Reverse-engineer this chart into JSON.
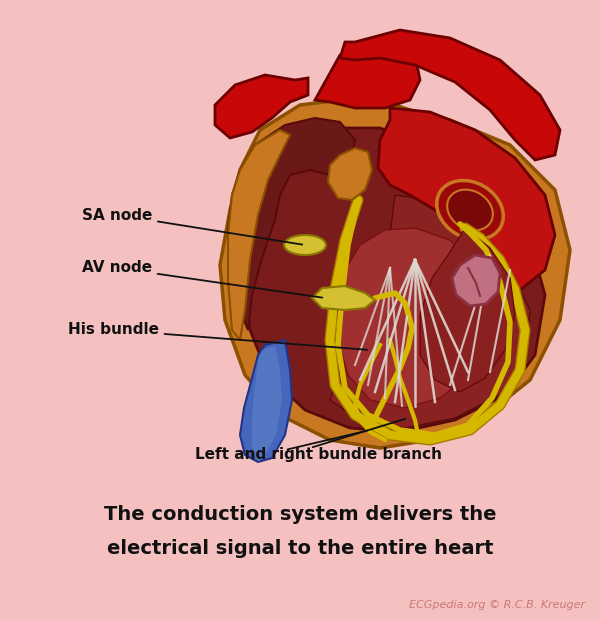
{
  "background_color": "#f5c0c0",
  "title_text1": "The conduction system delivers the",
  "title_text2": "electrical signal to the entire heart",
  "watermark": "ECGpedia.org © R.C.B. Kreuger",
  "label_fontsize": 11,
  "title_fontsize": 14,
  "watermark_fontsize": 8,
  "heart_outer_color": "#c87820",
  "heart_dark_red": "#7a1c1c",
  "heart_mid_red": "#9b2828",
  "heart_bright_red": "#cc1010",
  "heart_aorta_red": "#c80808",
  "sa_node_color": "#d4c030",
  "av_node_color": "#d4c030",
  "bundle_color": "#d4b800",
  "bundle_line_color": "#c8a000",
  "blue_vessel_color": "#4466bb",
  "blue_vessel_light": "#6688cc",
  "white_fiber_color": "#ddd8d0",
  "annotation_line_color": "#111111",
  "annot_fontsize": 11
}
